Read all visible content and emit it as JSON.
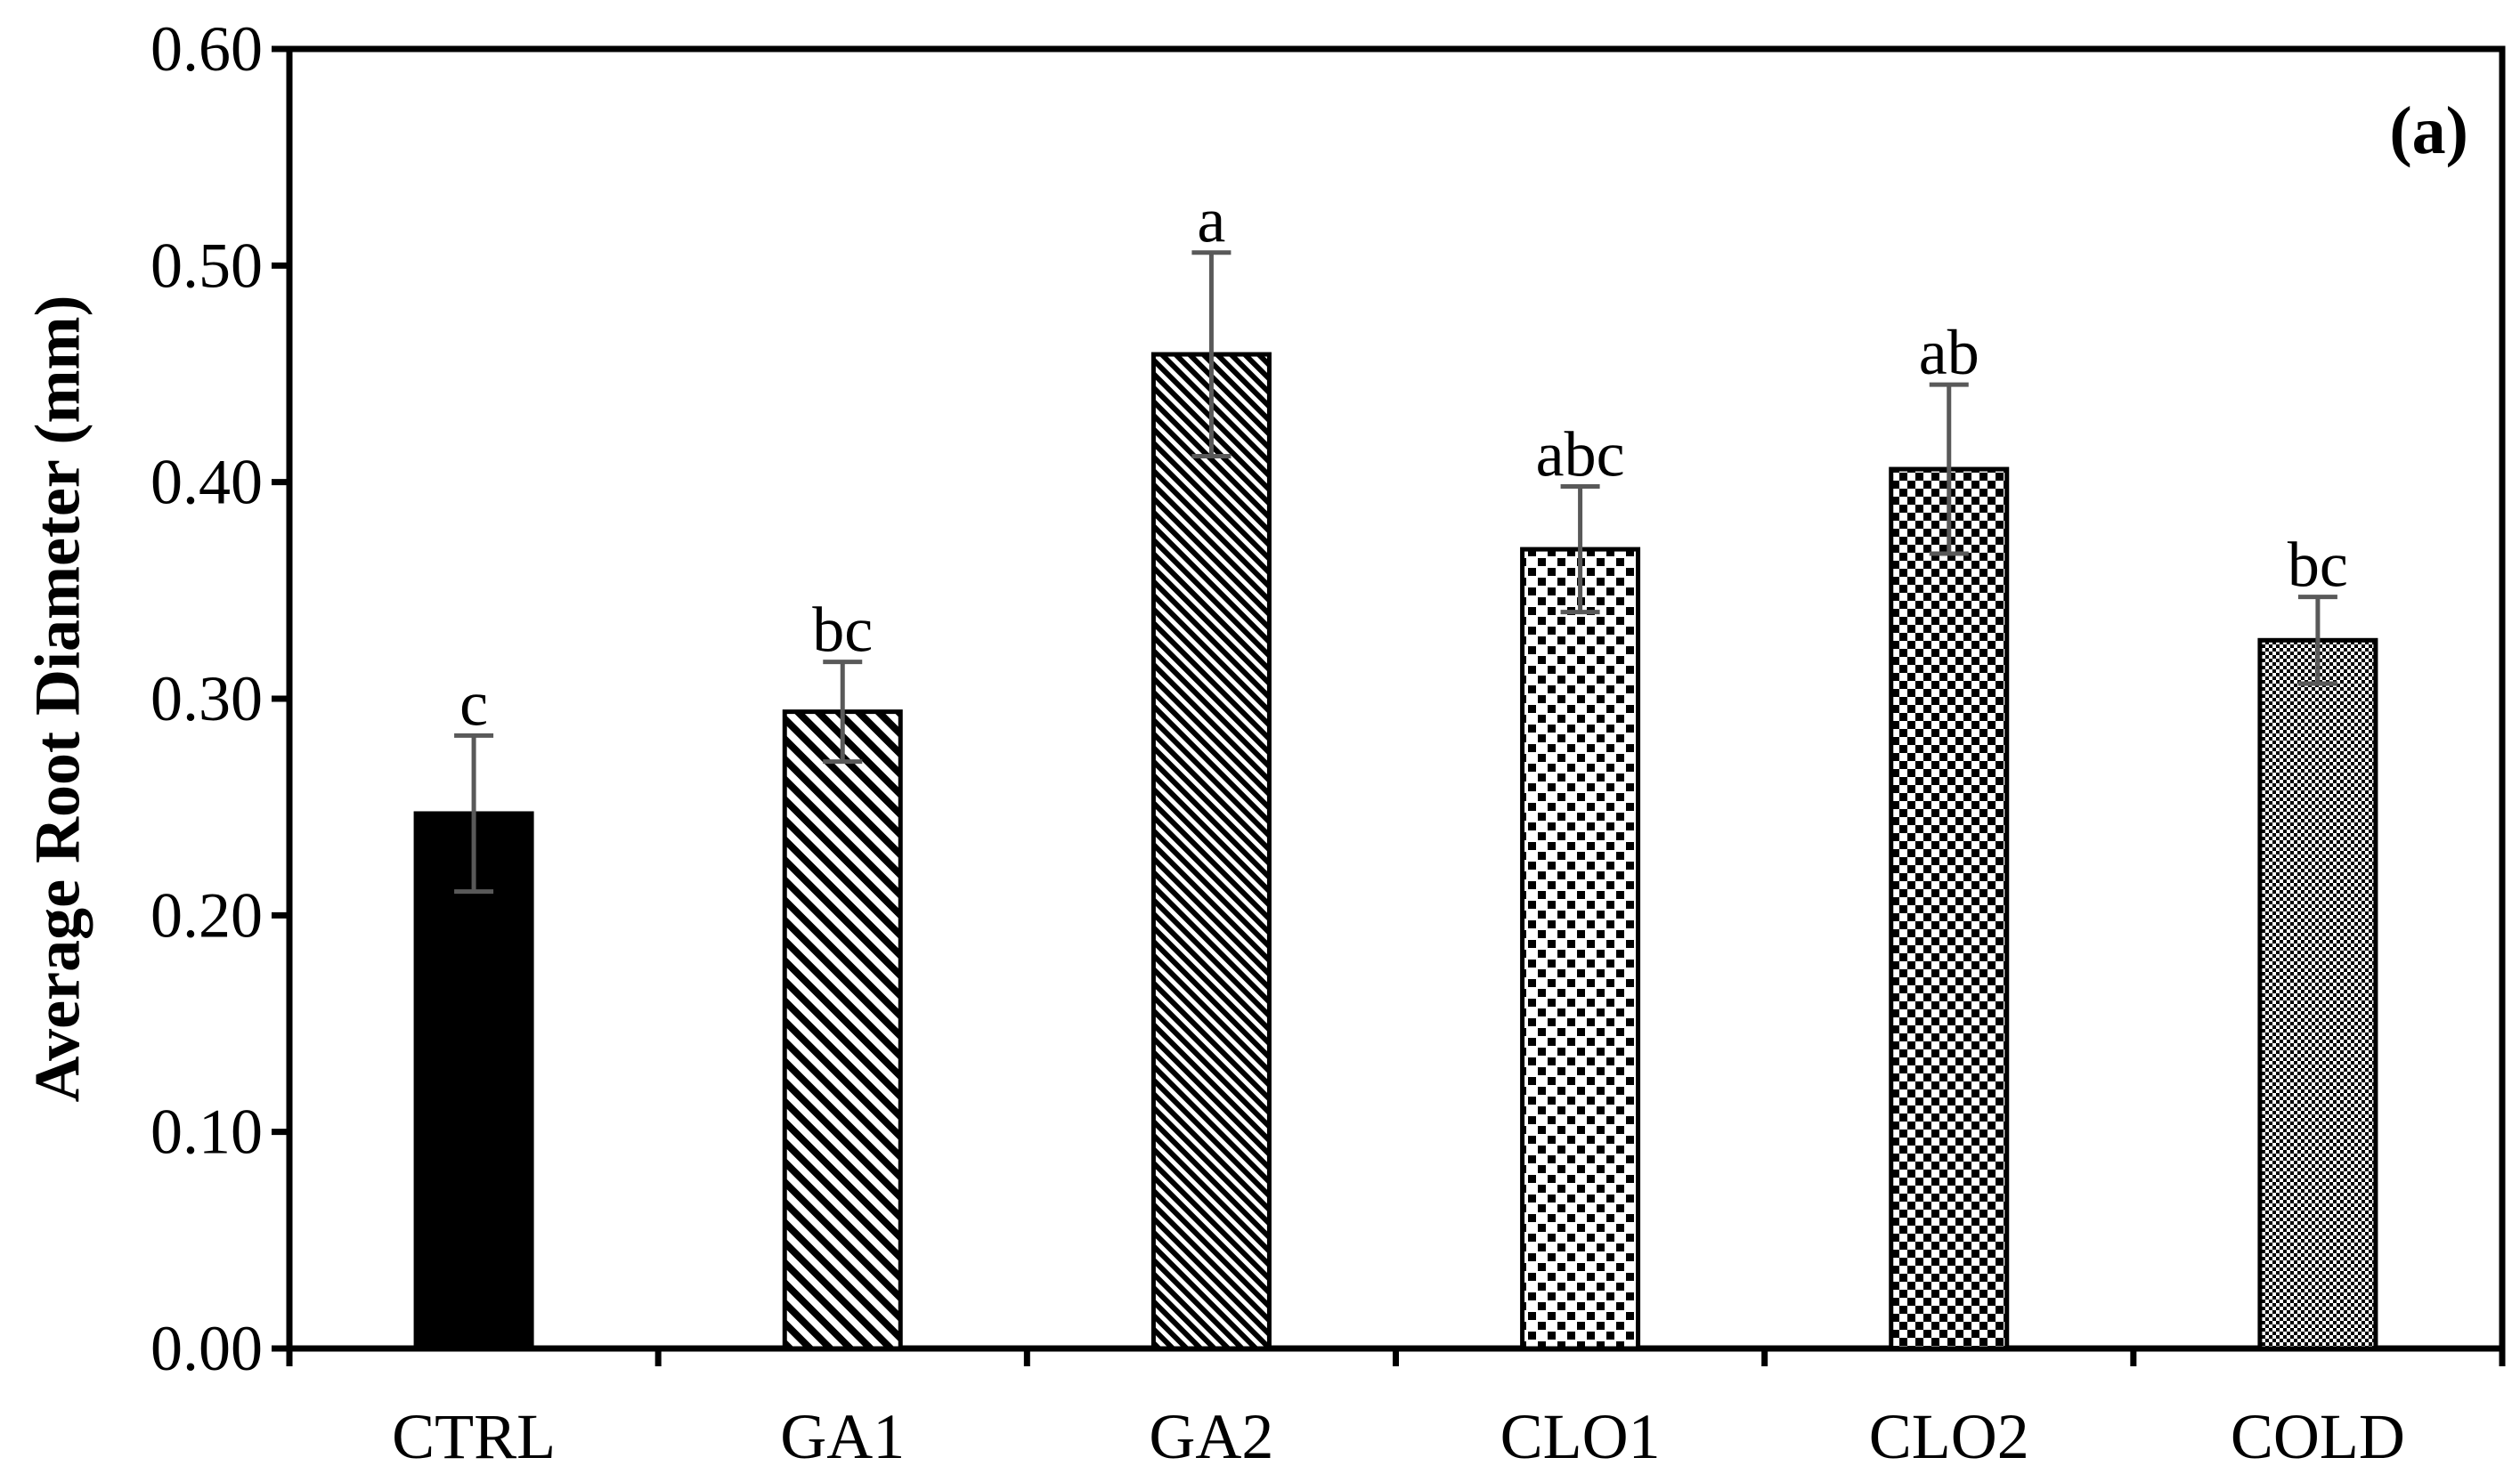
{
  "chart_data": {
    "type": "bar",
    "title": "",
    "panel_label": "(a)",
    "xlabel": "",
    "ylabel": "Average Root Diameter (mm)",
    "ylim": [
      0,
      0.6
    ],
    "yticks": [
      "0.00",
      "0.10",
      "0.20",
      "0.30",
      "0.40",
      "0.50",
      "0.60"
    ],
    "categories": [
      "CTRL",
      "GA1",
      "GA2",
      "CLO1",
      "CLO2",
      "COLD"
    ],
    "values": [
      0.247,
      0.294,
      0.459,
      0.369,
      0.406,
      0.327
    ],
    "errors": [
      0.036,
      0.023,
      0.047,
      0.029,
      0.039,
      0.02
    ],
    "significance": [
      "c",
      "bc",
      "a",
      "abc",
      "ab",
      "bc"
    ],
    "fill_patterns": [
      "solid-black",
      "diagonal-wide",
      "diagonal-dense",
      "checker-coarse",
      "checker-medium",
      "checker-fine"
    ],
    "legend": "none",
    "grid": false,
    "colors": {
      "bar_outline": "#000000",
      "error_bar": "#595959",
      "axis": "#000000"
    }
  }
}
